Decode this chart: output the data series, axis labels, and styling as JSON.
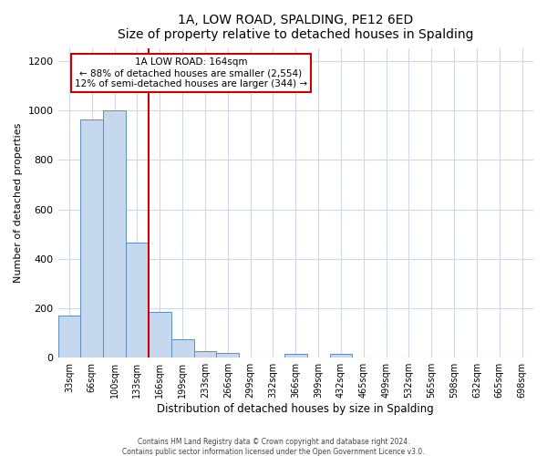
{
  "title": "1A, LOW ROAD, SPALDING, PE12 6ED",
  "subtitle": "Size of property relative to detached houses in Spalding",
  "xlabel": "Distribution of detached houses by size in Spalding",
  "ylabel": "Number of detached properties",
  "bar_labels": [
    "33sqm",
    "66sqm",
    "100sqm",
    "133sqm",
    "166sqm",
    "199sqm",
    "233sqm",
    "266sqm",
    "299sqm",
    "332sqm",
    "366sqm",
    "399sqm",
    "432sqm",
    "465sqm",
    "499sqm",
    "532sqm",
    "565sqm",
    "598sqm",
    "632sqm",
    "665sqm",
    "698sqm"
  ],
  "bar_values": [
    170,
    965,
    1000,
    465,
    185,
    75,
    25,
    20,
    0,
    0,
    15,
    0,
    15,
    0,
    0,
    0,
    0,
    0,
    0,
    0,
    0
  ],
  "bar_color": "#c5d8ed",
  "bar_edgecolor": "#5b8dc8",
  "vline_x": 4,
  "vline_color": "#cc0000",
  "annotation_title": "1A LOW ROAD: 164sqm",
  "annotation_line1": "← 88% of detached houses are smaller (2,554)",
  "annotation_line2": "12% of semi-detached houses are larger (344) →",
  "annotation_box_edgecolor": "#cc0000",
  "ylim": [
    0,
    1250
  ],
  "yticks": [
    0,
    200,
    400,
    600,
    800,
    1000,
    1200
  ],
  "footer_line1": "Contains HM Land Registry data © Crown copyright and database right 2024.",
  "footer_line2": "Contains public sector information licensed under the Open Government Licence v3.0.",
  "bg_color": "#ffffff",
  "plot_bg_color": "#ffffff"
}
